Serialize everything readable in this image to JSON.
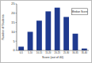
{
  "chart_data": {
    "type": "bar",
    "x_label": "Score (out of 40)",
    "y_label": "Number of Students",
    "annotation": "Median Score",
    "categories": [
      "0-5",
      "5-10",
      "10-15",
      "15-20",
      "20-25",
      "25-30",
      "30-35",
      "35-40"
    ],
    "values": [
      2,
      10,
      16,
      21,
      23,
      18,
      9,
      1
    ],
    "color": "#1f3a8f",
    "ylim": [
      0,
      25
    ],
    "yticks": [
      0,
      5,
      10,
      15,
      20,
      25
    ],
    "grid": false
  }
}
